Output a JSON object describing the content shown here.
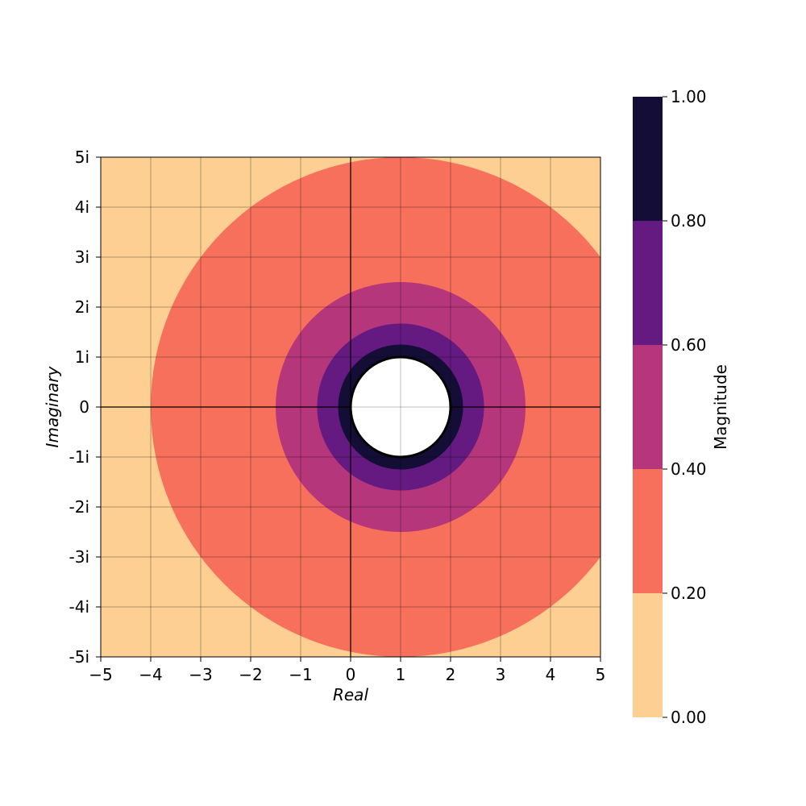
{
  "chart_data": {
    "type": "heatmap",
    "description_of_function": "",
    "xlabel": "Real",
    "ylabel": "Imaginary",
    "xlim": [
      -5,
      5
    ],
    "ylim": [
      -5,
      5
    ],
    "x_ticks": [
      -5,
      -4,
      -3,
      -2,
      -1,
      0,
      1,
      2,
      3,
      4,
      5
    ],
    "x_tick_labels": [
      "−5",
      "−4",
      "−3",
      "−2",
      "−1",
      "0",
      "1",
      "2",
      "3",
      "4",
      "5"
    ],
    "y_ticks": [
      5,
      4,
      3,
      2,
      1,
      0,
      -1,
      -2,
      -3,
      -4,
      -5
    ],
    "y_tick_labels": [
      "5i",
      "4i",
      "3i",
      "2i",
      "1i",
      "0",
      "-1i",
      "-2i",
      "-3i",
      "-4i",
      "-5i"
    ],
    "grid": true,
    "axis_lines": [
      {
        "axis": "x",
        "value": 0
      },
      {
        "axis": "y",
        "value": 0
      }
    ],
    "center": {
      "re": 1,
      "im": 0
    },
    "excluded_disk_radius": 1,
    "level_boundaries": [
      {
        "magnitude": 0.2,
        "radius": 5
      },
      {
        "magnitude": 0.4,
        "radius": 2.5
      },
      {
        "magnitude": 0.6,
        "radius": 1.67
      },
      {
        "magnitude": 0.8,
        "radius": 1.25
      }
    ],
    "colorbar": {
      "label": "Magnitude",
      "range": [
        0,
        1
      ],
      "levels": [
        0,
        0.2,
        0.4,
        0.6,
        0.8,
        1.0
      ],
      "tick_labels": [
        "0.00",
        "0.20",
        "0.40",
        "0.60",
        "0.80",
        "1.00"
      ],
      "band_colors": [
        "#fecf92",
        "#f6705b",
        "#b5367a",
        "#641a80",
        "#140e37"
      ]
    }
  }
}
